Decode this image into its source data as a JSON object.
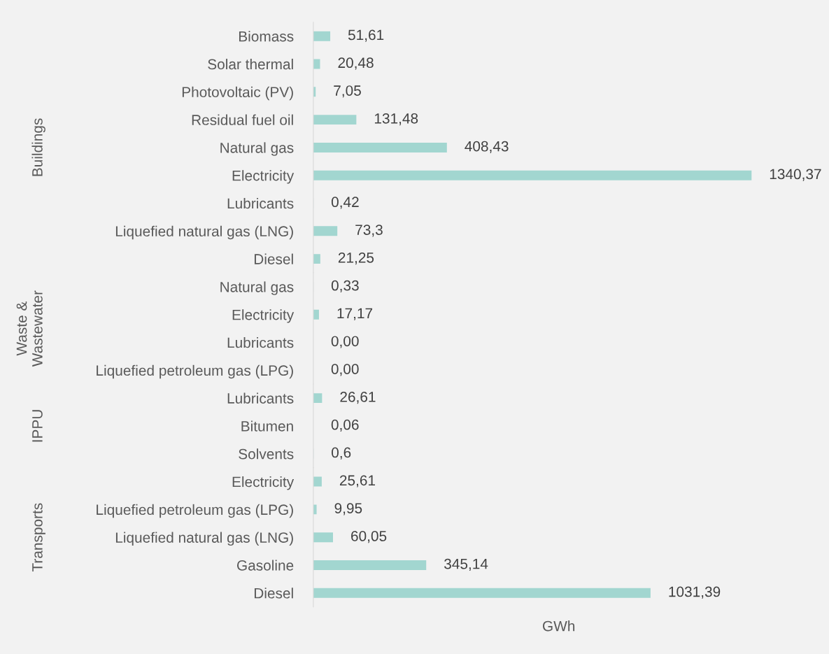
{
  "chart_data": [
    {
      "type": "bar",
      "orientation": "horizontal",
      "ylabel": "Buildings",
      "color": "#a2d6d0",
      "categories": [
        "Biomass",
        "Solar thermal",
        "Photovoltaic (PV)",
        "Residual fuel oil",
        "Natural gas",
        "Electricity",
        "Lubricants",
        "Liquefied natural gas (LNG)",
        "Diesel"
      ],
      "values": [
        51.61,
        20.48,
        7.05,
        131.48,
        408.43,
        1340.37,
        0.42,
        73.3,
        21.25
      ],
      "value_labels": [
        "51,61",
        "20,48",
        "7,05",
        "131,48",
        "408,43",
        "1340,37",
        "0,42",
        "73,3",
        "21,25"
      ]
    },
    {
      "type": "bar",
      "orientation": "horizontal",
      "ylabel": "Waste &\nWastewater",
      "color": "#a2d6d0",
      "categories": [
        "Natural gas",
        "Electricity",
        "Lubricants",
        "Liquefied petroleum gas (LPG)"
      ],
      "values": [
        0.33,
        17.17,
        0,
        0
      ],
      "value_labels": [
        "0,33",
        "17,17",
        "0,00",
        "0,00"
      ]
    },
    {
      "type": "bar",
      "orientation": "horizontal",
      "ylabel": "IPPU",
      "color": "#a2d6d0",
      "categories": [
        "Lubricants",
        "Bitumen",
        "Solvents"
      ],
      "values": [
        26.61,
        0.06,
        0.6
      ],
      "value_labels": [
        "26,61",
        "0,06",
        "0,6"
      ]
    },
    {
      "type": "bar",
      "orientation": "horizontal",
      "ylabel": "Transports",
      "xlabel": "GWh",
      "color": "#a2d6d0",
      "categories": [
        "Electricity",
        "Liquefied petroleum gas (LPG)",
        "Liquefied natural gas (LNG)",
        "Gasoline",
        "Diesel"
      ],
      "values": [
        25.61,
        9.95,
        60.05,
        345.14,
        1031.39
      ],
      "value_labels": [
        "25,61",
        "9,95",
        "60,05",
        "345,14",
        "1031,39"
      ]
    }
  ]
}
